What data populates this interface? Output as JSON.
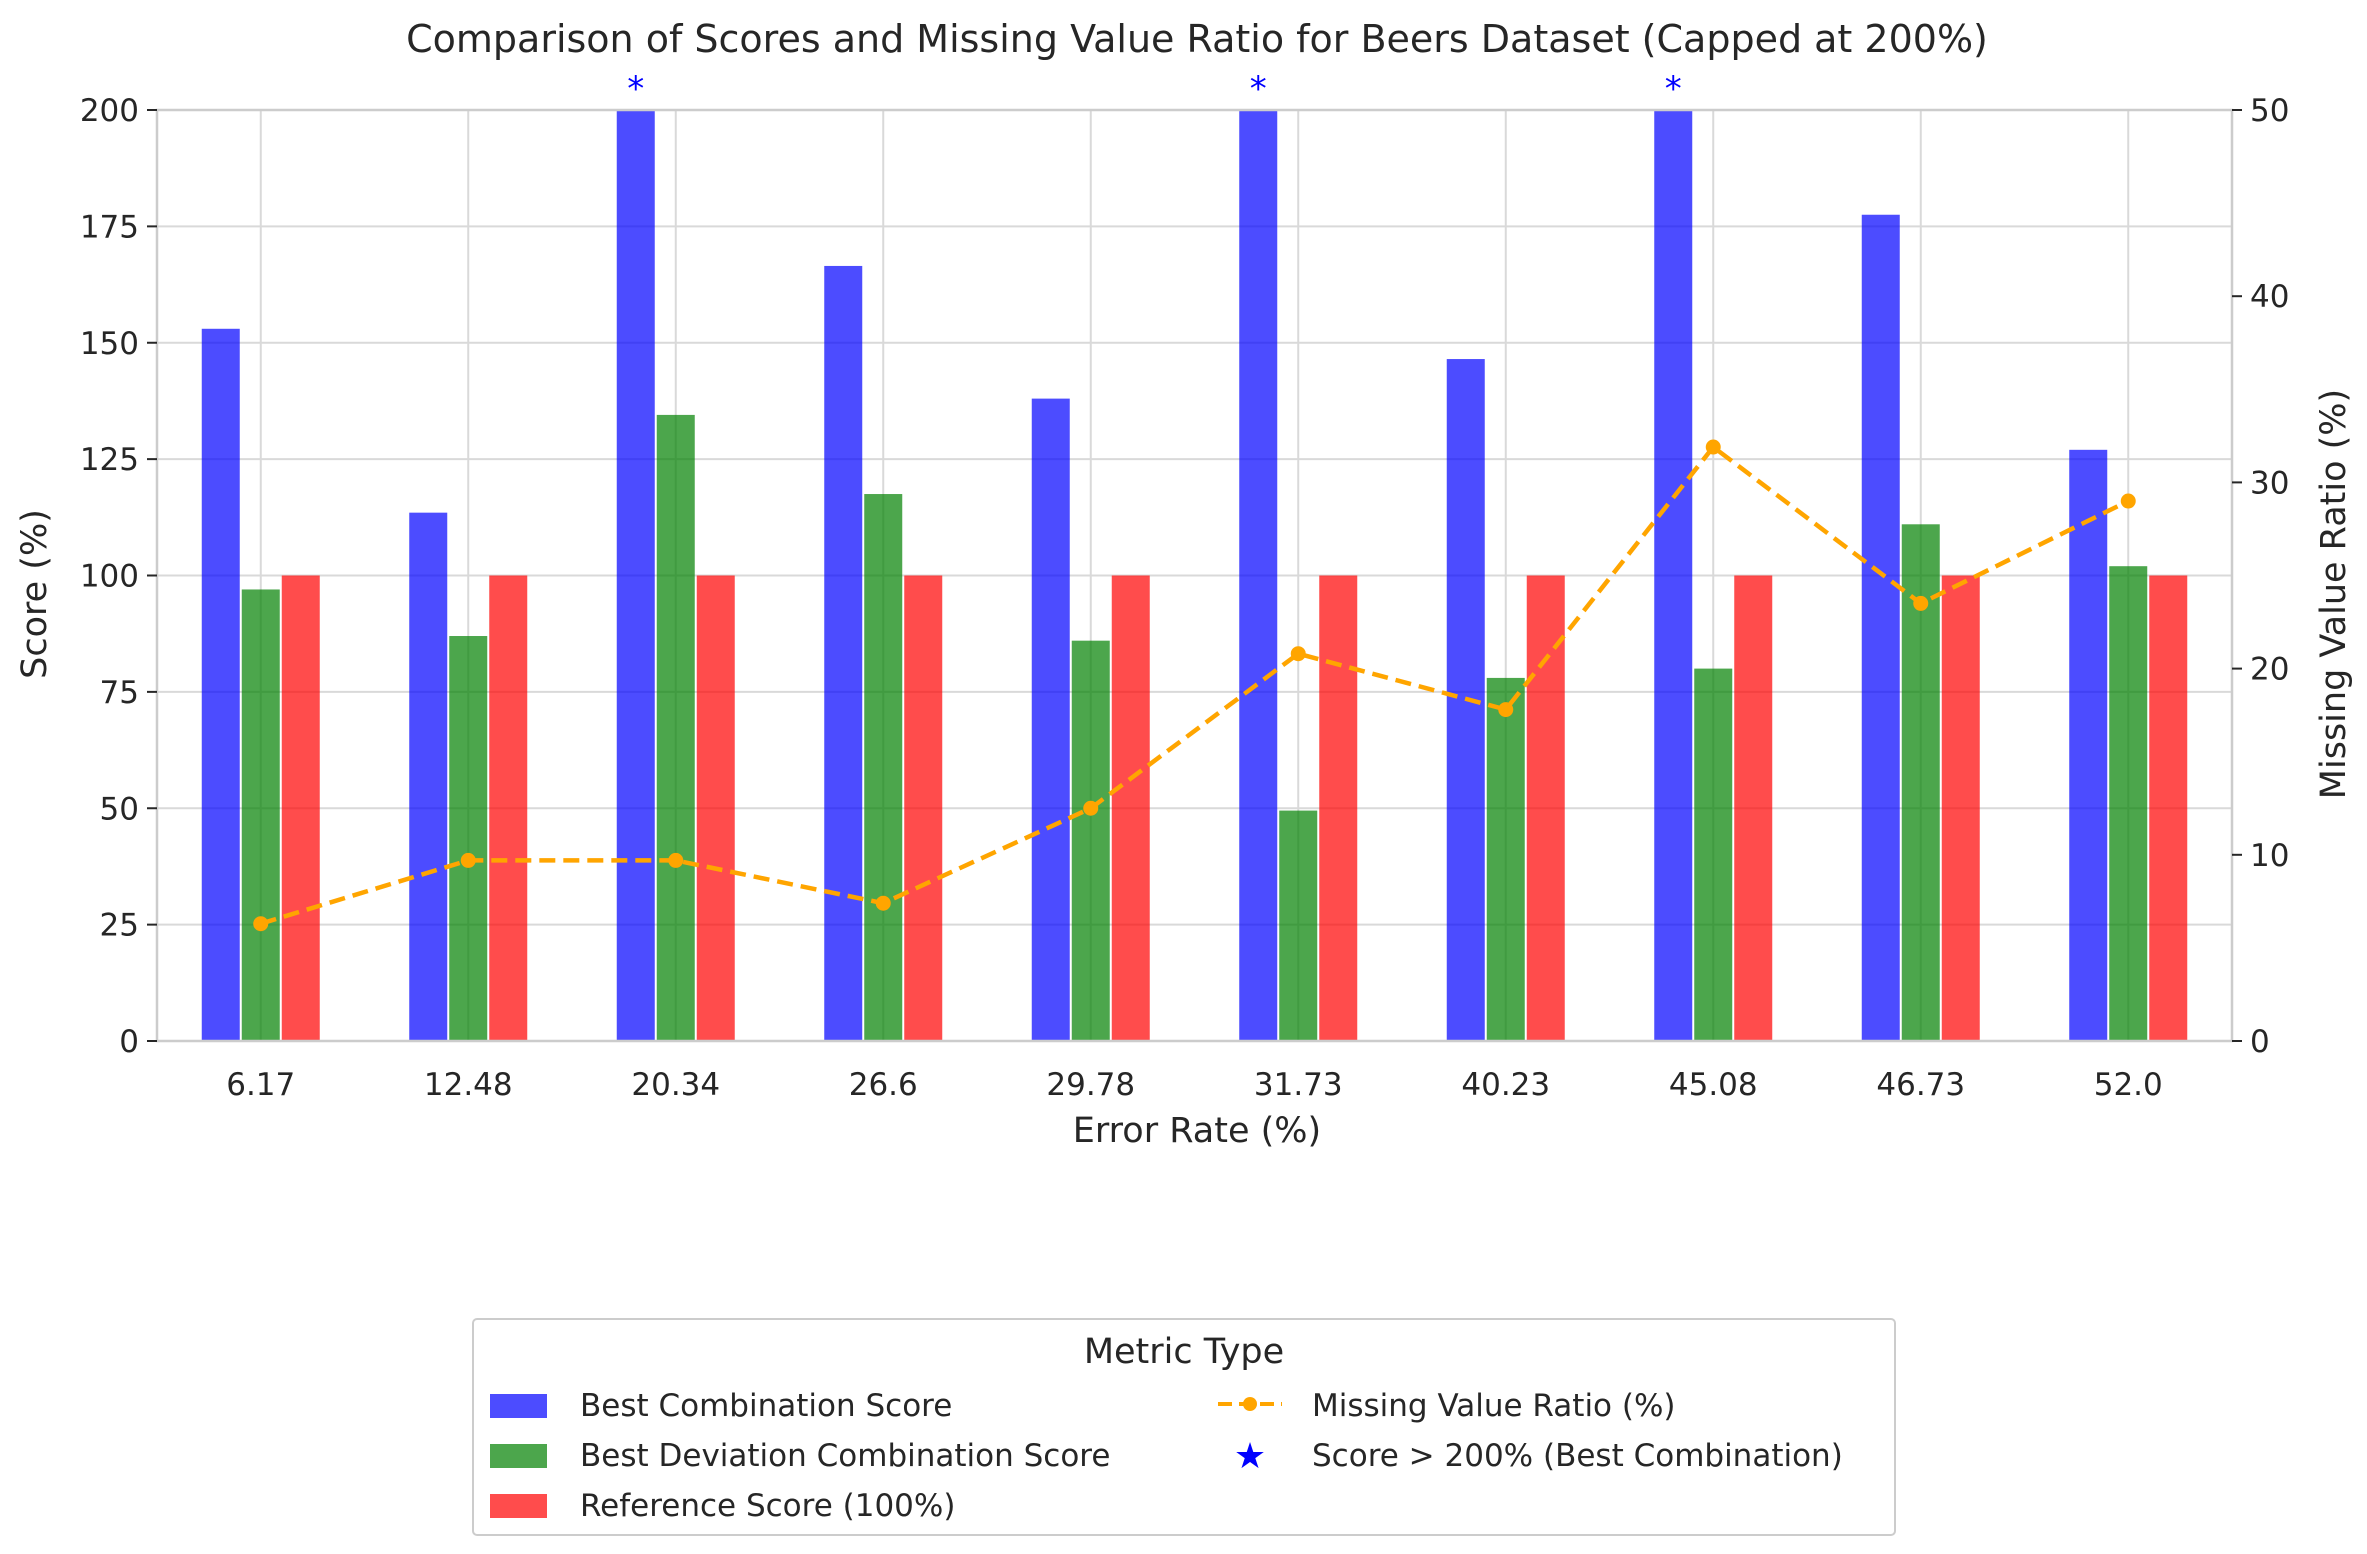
{
  "chart_data": {
    "type": "bar",
    "title": "Comparison of Scores and Missing Value Ratio for Beers Dataset (Capped at 200%)",
    "xlabel": "Error Rate (%)",
    "ylabel": "Score (%)",
    "y2label": "Missing Value Ratio (%)",
    "ylim": [
      0,
      200
    ],
    "y2lim": [
      0,
      50
    ],
    "yticks": [
      0,
      25,
      50,
      75,
      100,
      125,
      150,
      175,
      200
    ],
    "y2ticks": [
      0,
      10,
      20,
      30,
      40,
      50
    ],
    "grid": true,
    "categories": [
      "6.17",
      "12.48",
      "20.34",
      "26.6",
      "29.78",
      "31.73",
      "40.23",
      "45.08",
      "46.73",
      "52.0"
    ],
    "series": [
      {
        "name": "Best Combination Score",
        "type": "bar",
        "color": "#0000ff",
        "values": [
          153,
          113.5,
          200,
          166.5,
          138,
          200,
          146.5,
          200,
          177.5,
          127
        ]
      },
      {
        "name": "Best Deviation Combination Score",
        "type": "bar",
        "color": "#008000",
        "values": [
          97,
          87,
          134.5,
          117.5,
          86,
          49.5,
          78,
          80,
          111,
          102
        ]
      },
      {
        "name": "Reference Score (100%)",
        "type": "bar",
        "color": "#ff0000",
        "values": [
          100,
          100,
          100,
          100,
          100,
          100,
          100,
          100,
          100,
          100
        ]
      },
      {
        "name": "Missing Value Ratio (%)",
        "type": "line",
        "axis": "right",
        "color": "#ffa500",
        "values": [
          6.3,
          9.7,
          9.7,
          7.4,
          12.5,
          20.8,
          17.8,
          31.9,
          23.5,
          29.0
        ]
      }
    ],
    "capped_markers": {
      "symbol": "*",
      "color": "#0000ff",
      "label": "Score > 200% (Best Combination)",
      "categories": [
        "20.34",
        "31.73",
        "45.08"
      ]
    },
    "legend": {
      "title": "Metric Type",
      "placement": "bottom-center"
    }
  }
}
